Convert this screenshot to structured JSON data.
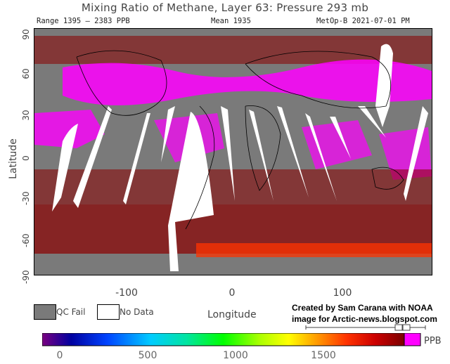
{
  "header": {
    "title": "Mixing Ratio of Methane, Layer 63: Pressure 293 mb",
    "range": "Range 1395 – 2383 PPB",
    "mean": "Mean 1935",
    "satellite": "MetOp-B 2021-07-01 PM"
  },
  "axes": {
    "ylabel": "Latitude",
    "xlabel": "Longitude",
    "yticks": [
      "90",
      "60",
      "30",
      "0",
      "-30",
      "-60",
      "-90"
    ],
    "xticks": [
      "-100",
      "0",
      "100"
    ]
  },
  "legend": {
    "qc_fail": "QC Fail",
    "no_data": "No Data",
    "qc_color": "#7a7a7a",
    "nodata_color": "#ffffff"
  },
  "credit": {
    "line1": "Created by Sam Carana with NOAA",
    "line2": "image for Arctic-news.blogspot.com"
  },
  "colorbar": {
    "ticks": [
      "0",
      "500",
      "1000",
      "1500"
    ],
    "unit": "PPB",
    "colors": [
      "#7a0080",
      "#0000a0",
      "#0044ff",
      "#00ccff",
      "#00e5a0",
      "#00ff00",
      "#aaff00",
      "#ffff00",
      "#ff9900",
      "#ff3300",
      "#cc0000",
      "#7a0000",
      "#ff00ff"
    ]
  },
  "palette": {
    "land_qc": "#7a7a7a",
    "dark_red": "#8b0000",
    "red": "#d40000",
    "magenta": "#ff00ff",
    "orange": "#ff5500"
  }
}
